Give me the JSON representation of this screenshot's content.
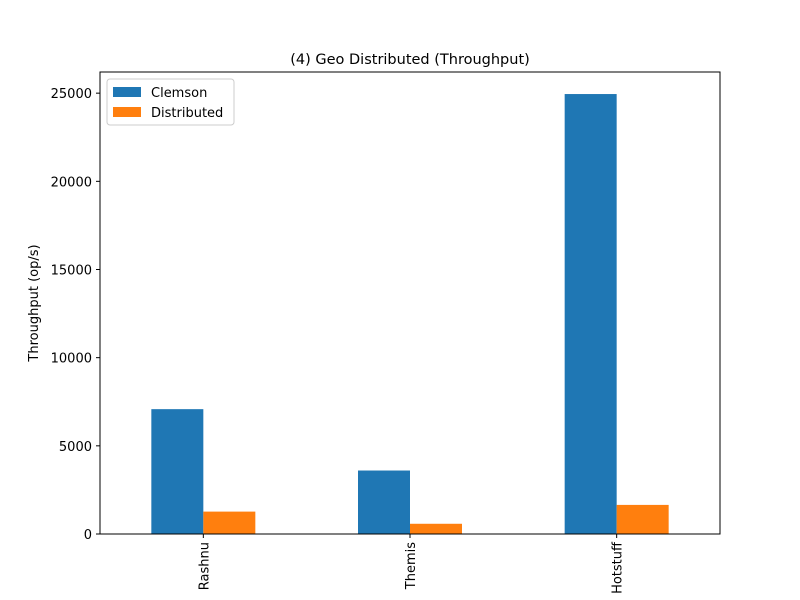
{
  "chart_data": {
    "type": "bar",
    "title": "(4) Geo Distributed (Throughput)",
    "xlabel": "",
    "ylabel": "Throughput (op/s)",
    "categories": [
      "Rashnu",
      "Themis",
      "Hotstuff"
    ],
    "series": [
      {
        "name": "Clemson",
        "values": [
          7080,
          3600,
          24950
        ],
        "color": "#1f77b4"
      },
      {
        "name": "Distributed",
        "values": [
          1270,
          580,
          1650
        ],
        "color": "#ff7f0e"
      }
    ],
    "ylim": [
      0,
      26200
    ],
    "yticks": [
      0,
      5000,
      10000,
      15000,
      20000,
      25000
    ],
    "grid": false,
    "legend_position": "top-left"
  }
}
